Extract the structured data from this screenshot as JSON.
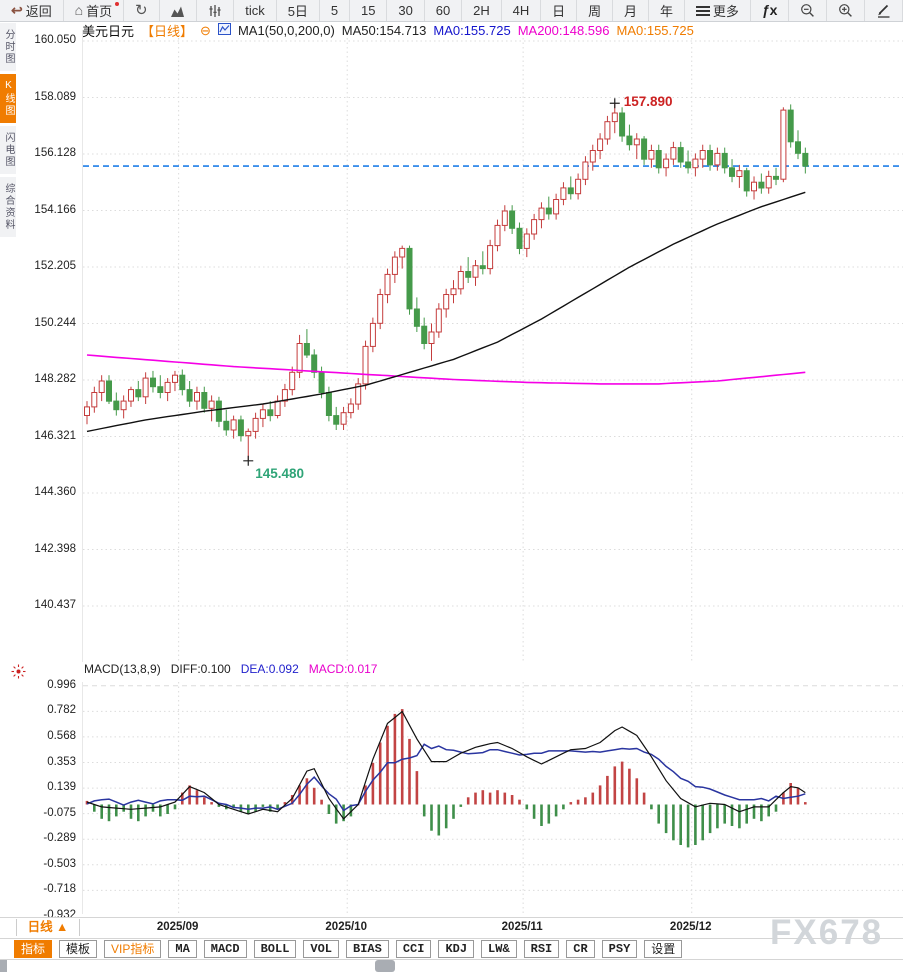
{
  "toolbar": {
    "items": [
      {
        "name": "back",
        "icon": "back-arrow",
        "label": "返回"
      },
      {
        "name": "home",
        "icon": "home",
        "label": "首页",
        "badge": true
      },
      {
        "name": "refresh",
        "icon": "refresh"
      },
      {
        "name": "chart-type-area",
        "icon": "area-chart"
      },
      {
        "name": "chart-type-candle",
        "icon": "candle-sliders"
      },
      {
        "name": "interval-tick",
        "label": "tick"
      },
      {
        "name": "interval-5d",
        "label": "5日"
      },
      {
        "name": "interval-5",
        "label": "5"
      },
      {
        "name": "interval-15",
        "label": "15"
      },
      {
        "name": "interval-30",
        "label": "30"
      },
      {
        "name": "interval-60",
        "label": "60"
      },
      {
        "name": "interval-2h",
        "label": "2H"
      },
      {
        "name": "interval-4h",
        "label": "4H"
      },
      {
        "name": "interval-day",
        "label": "日"
      },
      {
        "name": "interval-week",
        "label": "周"
      },
      {
        "name": "interval-month",
        "label": "月"
      },
      {
        "name": "interval-year",
        "label": "年"
      },
      {
        "name": "more",
        "icon": "menu",
        "label": "更多"
      },
      {
        "name": "formula",
        "icon": "fx"
      },
      {
        "name": "zoom-out",
        "icon": "zoom-out"
      },
      {
        "name": "zoom-in",
        "icon": "zoom-in"
      },
      {
        "name": "draw",
        "icon": "pen"
      }
    ]
  },
  "sidebar": {
    "items": [
      {
        "name": "timeshare",
        "label": "分时图",
        "active": false
      },
      {
        "name": "kline",
        "label": "K线图",
        "active": true
      },
      {
        "name": "lightning",
        "label": "闪电图",
        "active": false
      },
      {
        "name": "info",
        "label": "综合资料",
        "active": false
      }
    ]
  },
  "symbol_header": {
    "symbol": "美元日元",
    "period": "【日线】",
    "collapse_glyph": "⊖",
    "ma_settings": "MA1(50,0,200,0)",
    "ma50": "MA50:154.713",
    "ma0_blue": "MA0:155.725",
    "ma200": "MA200:148.596",
    "ma0_orange": "MA0:155.725"
  },
  "macd_header": {
    "title": "MACD(13,8,9)",
    "diff": "DIFF:0.100",
    "dea": "DEA:0.092",
    "macd": "MACD:0.017"
  },
  "footer": {
    "period_selector": "日线 ▲",
    "watermark": "FX678",
    "tabs": [
      {
        "name": "indicator",
        "label": "指标",
        "style": "active"
      },
      {
        "name": "template",
        "label": "模板"
      },
      {
        "name": "vip-indicator",
        "label": "VIP指标",
        "style": "vip"
      },
      {
        "name": "ma",
        "label": "MA",
        "mono": true
      },
      {
        "name": "macd",
        "label": "MACD",
        "mono": true
      },
      {
        "name": "boll",
        "label": "BOLL",
        "mono": true
      },
      {
        "name": "vol",
        "label": "VOL",
        "mono": true
      },
      {
        "name": "bias",
        "label": "BIAS",
        "mono": true
      },
      {
        "name": "cci",
        "label": "CCI",
        "mono": true
      },
      {
        "name": "kdj",
        "label": "KDJ",
        "mono": true
      },
      {
        "name": "lw",
        "label": "LW&",
        "mono": true
      },
      {
        "name": "rsi",
        "label": "RSI",
        "mono": true
      },
      {
        "name": "cr",
        "label": "CR",
        "mono": true
      },
      {
        "name": "psy",
        "label": "PSY",
        "mono": true
      },
      {
        "name": "settings",
        "label": "设置"
      }
    ]
  },
  "colors": {
    "accent_orange": "#f07c00",
    "up": "#c43c3c",
    "down": "#459a4a",
    "ma50": "#111111",
    "ma200": "#f500e6",
    "last_price": "#1f7fe8",
    "diff": "#111111",
    "dea": "#2a35a0",
    "hist_up": "#c24444",
    "hist_down": "#3f8f4a",
    "grid": "#dcdcdc",
    "annotation_high": "#cc2222",
    "annotation_low": "#2fa477"
  },
  "chart_data": {
    "type": "candlestick_with_macd",
    "title": "USD/JPY (美元日元) daily candles with MA50/MA200 and MACD(13,8,9)",
    "price_axis_ticks": [
      160.05,
      158.089,
      156.128,
      154.166,
      152.205,
      150.244,
      148.282,
      146.321,
      144.36,
      142.398,
      140.437
    ],
    "macd_axis_ticks": [
      0.996,
      0.782,
      0.568,
      0.353,
      0.139,
      -0.075,
      -0.289,
      -0.503,
      -0.718,
      -0.932
    ],
    "x_axis_labels": [
      "2025/09",
      "2025/10",
      "2025/11",
      "2025/12"
    ],
    "month_start_indices": [
      13,
      36,
      60,
      83
    ],
    "last_price_line": 155.71,
    "high_annotation": {
      "index": 72,
      "price": 157.89,
      "label": "157.890"
    },
    "low_annotation": {
      "index": 22,
      "price": 145.48,
      "label": "145.480"
    },
    "candles": [
      [
        147.05,
        147.55,
        146.75,
        147.35
      ],
      [
        147.35,
        148.05,
        147.15,
        147.85
      ],
      [
        147.85,
        148.45,
        147.55,
        148.25
      ],
      [
        148.25,
        148.45,
        147.45,
        147.55
      ],
      [
        147.55,
        147.85,
        147.05,
        147.25
      ],
      [
        147.25,
        147.75,
        146.95,
        147.55
      ],
      [
        147.55,
        148.05,
        147.35,
        147.95
      ],
      [
        147.95,
        148.25,
        147.55,
        147.7
      ],
      [
        147.7,
        148.55,
        147.45,
        148.35
      ],
      [
        148.35,
        148.6,
        147.85,
        148.05
      ],
      [
        148.05,
        148.45,
        147.65,
        147.85
      ],
      [
        147.85,
        148.35,
        147.55,
        148.2
      ],
      [
        148.2,
        148.6,
        147.9,
        148.45
      ],
      [
        148.45,
        148.65,
        147.75,
        147.95
      ],
      [
        147.95,
        148.25,
        147.35,
        147.55
      ],
      [
        147.55,
        148.05,
        147.25,
        147.85
      ],
      [
        147.85,
        148.05,
        147.15,
        147.3
      ],
      [
        147.3,
        147.75,
        146.85,
        147.55
      ],
      [
        147.55,
        147.7,
        146.65,
        146.85
      ],
      [
        146.85,
        147.25,
        146.35,
        146.55
      ],
      [
        146.55,
        147.05,
        146.25,
        146.9
      ],
      [
        146.9,
        147.05,
        146.15,
        146.35
      ],
      [
        146.35,
        146.6,
        145.48,
        146.5
      ],
      [
        146.5,
        147.15,
        146.25,
        146.95
      ],
      [
        146.95,
        147.45,
        146.65,
        147.25
      ],
      [
        147.25,
        147.55,
        146.85,
        147.05
      ],
      [
        147.05,
        147.75,
        146.95,
        147.55
      ],
      [
        147.55,
        148.15,
        147.35,
        147.95
      ],
      [
        147.95,
        148.75,
        147.75,
        148.55
      ],
      [
        148.55,
        149.85,
        148.35,
        149.55
      ],
      [
        149.55,
        150.05,
        149.05,
        149.15
      ],
      [
        149.15,
        149.35,
        148.35,
        148.55
      ],
      [
        148.55,
        148.75,
        147.65,
        147.85
      ],
      [
        147.85,
        148.05,
        146.85,
        147.05
      ],
      [
        147.05,
        147.35,
        146.55,
        146.75
      ],
      [
        146.75,
        147.35,
        146.55,
        147.15
      ],
      [
        147.15,
        147.65,
        146.95,
        147.45
      ],
      [
        147.45,
        148.35,
        147.25,
        148.15
      ],
      [
        148.15,
        149.65,
        147.95,
        149.45
      ],
      [
        149.45,
        150.45,
        149.25,
        150.25
      ],
      [
        150.25,
        151.45,
        150.05,
        151.25
      ],
      [
        151.25,
        152.15,
        150.95,
        151.95
      ],
      [
        151.95,
        152.75,
        151.65,
        152.55
      ],
      [
        152.55,
        152.95,
        152.15,
        152.85
      ],
      [
        152.85,
        152.95,
        150.55,
        150.75
      ],
      [
        150.75,
        151.15,
        149.95,
        150.15
      ],
      [
        150.15,
        150.45,
        149.35,
        149.55
      ],
      [
        149.55,
        150.25,
        148.95,
        149.95
      ],
      [
        149.95,
        150.95,
        149.75,
        150.75
      ],
      [
        150.75,
        151.45,
        150.45,
        151.25
      ],
      [
        151.25,
        151.75,
        150.95,
        151.45
      ],
      [
        151.45,
        152.25,
        151.25,
        152.05
      ],
      [
        152.05,
        152.55,
        151.65,
        151.85
      ],
      [
        151.85,
        152.45,
        151.55,
        152.25
      ],
      [
        152.25,
        152.75,
        151.95,
        152.15
      ],
      [
        152.15,
        153.15,
        151.95,
        152.95
      ],
      [
        152.95,
        153.85,
        152.75,
        153.65
      ],
      [
        153.65,
        154.35,
        153.45,
        154.15
      ],
      [
        154.15,
        154.35,
        153.35,
        153.55
      ],
      [
        153.55,
        153.75,
        152.65,
        152.85
      ],
      [
        152.85,
        153.55,
        152.55,
        153.35
      ],
      [
        153.35,
        154.05,
        153.15,
        153.85
      ],
      [
        153.85,
        154.45,
        153.55,
        154.25
      ],
      [
        154.25,
        154.65,
        153.85,
        154.05
      ],
      [
        154.05,
        154.75,
        153.85,
        154.55
      ],
      [
        154.55,
        155.15,
        154.35,
        154.95
      ],
      [
        154.95,
        155.35,
        154.55,
        154.75
      ],
      [
        154.75,
        155.45,
        154.55,
        155.25
      ],
      [
        155.25,
        156.05,
        155.05,
        155.85
      ],
      [
        155.85,
        156.45,
        155.55,
        156.25
      ],
      [
        156.25,
        156.85,
        155.95,
        156.65
      ],
      [
        156.65,
        157.45,
        156.45,
        157.25
      ],
      [
        157.25,
        157.89,
        156.85,
        157.55
      ],
      [
        157.55,
        157.75,
        156.55,
        156.75
      ],
      [
        156.75,
        157.15,
        156.25,
        156.45
      ],
      [
        156.45,
        156.85,
        155.95,
        156.65
      ],
      [
        156.65,
        156.75,
        155.75,
        155.95
      ],
      [
        155.95,
        156.45,
        155.65,
        156.25
      ],
      [
        156.25,
        156.45,
        155.45,
        155.65
      ],
      [
        155.65,
        156.15,
        155.35,
        155.95
      ],
      [
        155.95,
        156.55,
        155.75,
        156.35
      ],
      [
        156.35,
        156.55,
        155.65,
        155.85
      ],
      [
        155.85,
        156.25,
        155.45,
        155.65
      ],
      [
        155.65,
        156.15,
        155.35,
        155.95
      ],
      [
        155.95,
        156.45,
        155.65,
        156.25
      ],
      [
        156.25,
        156.45,
        155.55,
        155.75
      ],
      [
        155.75,
        156.35,
        155.55,
        156.15
      ],
      [
        156.15,
        156.35,
        155.45,
        155.65
      ],
      [
        155.65,
        155.95,
        155.15,
        155.35
      ],
      [
        155.35,
        155.75,
        154.95,
        155.55
      ],
      [
        155.55,
        155.65,
        154.65,
        154.85
      ],
      [
        154.85,
        155.35,
        154.55,
        155.15
      ],
      [
        155.15,
        155.45,
        154.75,
        154.95
      ],
      [
        154.95,
        155.55,
        154.75,
        155.35
      ],
      [
        155.35,
        155.65,
        155.05,
        155.25
      ],
      [
        155.25,
        157.75,
        155.15,
        157.65
      ],
      [
        157.65,
        157.85,
        156.35,
        156.55
      ],
      [
        156.55,
        156.95,
        155.95,
        156.15
      ],
      [
        156.15,
        156.35,
        155.45,
        155.71
      ]
    ],
    "ma50_points": [
      [
        0,
        146.5
      ],
      [
        8,
        146.9
      ],
      [
        16,
        147.2
      ],
      [
        24,
        147.45
      ],
      [
        32,
        147.8
      ],
      [
        38,
        148.1
      ],
      [
        44,
        148.55
      ],
      [
        50,
        149.0
      ],
      [
        56,
        149.6
      ],
      [
        62,
        150.4
      ],
      [
        68,
        151.3
      ],
      [
        74,
        152.2
      ],
      [
        80,
        153.0
      ],
      [
        86,
        153.7
      ],
      [
        92,
        154.3
      ],
      [
        98,
        154.8
      ]
    ],
    "ma200_points": [
      [
        0,
        149.15
      ],
      [
        10,
        148.95
      ],
      [
        20,
        148.75
      ],
      [
        30,
        148.6
      ],
      [
        40,
        148.45
      ],
      [
        50,
        148.3
      ],
      [
        60,
        148.2
      ],
      [
        70,
        148.15
      ],
      [
        78,
        148.15
      ],
      [
        86,
        148.25
      ],
      [
        92,
        148.4
      ],
      [
        98,
        148.55
      ]
    ],
    "macd": {
      "diff_points": [
        [
          0,
          0.02
        ],
        [
          2,
          -0.02
        ],
        [
          4,
          -0.03
        ],
        [
          6,
          -0.04
        ],
        [
          8,
          -0.03
        ],
        [
          10,
          -0.02
        ],
        [
          12,
          0.02
        ],
        [
          14,
          0.15
        ],
        [
          16,
          0.1
        ],
        [
          18,
          0.0
        ],
        [
          20,
          -0.04
        ],
        [
          22,
          -0.08
        ],
        [
          24,
          -0.04
        ],
        [
          26,
          -0.06
        ],
        [
          28,
          0.05
        ],
        [
          30,
          0.28
        ],
        [
          31,
          0.3
        ],
        [
          33,
          0.05
        ],
        [
          35,
          -0.12
        ],
        [
          37,
          0.0
        ],
        [
          39,
          0.38
        ],
        [
          41,
          0.68
        ],
        [
          43,
          0.78
        ],
        [
          45,
          0.55
        ],
        [
          47,
          0.36
        ],
        [
          49,
          0.36
        ],
        [
          51,
          0.43
        ],
        [
          53,
          0.48
        ],
        [
          55,
          0.51
        ],
        [
          56,
          0.52
        ],
        [
          58,
          0.47
        ],
        [
          60,
          0.4
        ],
        [
          62,
          0.34
        ],
        [
          64,
          0.4
        ],
        [
          66,
          0.46
        ],
        [
          68,
          0.47
        ],
        [
          70,
          0.52
        ],
        [
          72,
          0.62
        ],
        [
          73,
          0.65
        ],
        [
          75,
          0.58
        ],
        [
          77,
          0.4
        ],
        [
          79,
          0.2
        ],
        [
          81,
          0.05
        ],
        [
          83,
          -0.02
        ],
        [
          85,
          0.01
        ],
        [
          87,
          0.0
        ],
        [
          89,
          -0.06
        ],
        [
          91,
          -0.02
        ],
        [
          93,
          -0.02
        ],
        [
          95,
          0.1
        ],
        [
          96,
          0.15
        ],
        [
          97,
          0.14
        ],
        [
          98,
          0.1
        ]
      ],
      "hist": [
        0.03,
        -0.06,
        -0.12,
        -0.14,
        -0.1,
        -0.06,
        -0.12,
        -0.14,
        -0.1,
        -0.06,
        -0.1,
        -0.08,
        -0.04,
        0.1,
        0.16,
        0.12,
        0.06,
        0.02,
        -0.02,
        -0.04,
        -0.03,
        -0.06,
        -0.08,
        -0.06,
        -0.02,
        -0.06,
        -0.04,
        0.02,
        0.08,
        0.16,
        0.22,
        0.14,
        0.04,
        -0.08,
        -0.16,
        -0.14,
        -0.1,
        0.0,
        0.16,
        0.35,
        0.52,
        0.66,
        0.76,
        0.8,
        0.55,
        0.28,
        -0.1,
        -0.22,
        -0.26,
        -0.2,
        -0.12,
        -0.02,
        0.06,
        0.1,
        0.12,
        0.1,
        0.12,
        0.1,
        0.08,
        0.04,
        -0.04,
        -0.12,
        -0.18,
        -0.16,
        -0.1,
        -0.04,
        0.02,
        0.04,
        0.06,
        0.1,
        0.16,
        0.24,
        0.32,
        0.36,
        0.3,
        0.22,
        0.1,
        -0.04,
        -0.16,
        -0.24,
        -0.3,
        -0.34,
        -0.36,
        -0.34,
        -0.3,
        -0.24,
        -0.2,
        -0.16,
        -0.18,
        -0.2,
        -0.16,
        -0.12,
        -0.14,
        -0.1,
        -0.06,
        0.1,
        0.18,
        0.14,
        0.02
      ],
      "hist_formula": "hist = 2*(DIFF-DEA); DEA derived as DIFF - hist/2"
    }
  }
}
